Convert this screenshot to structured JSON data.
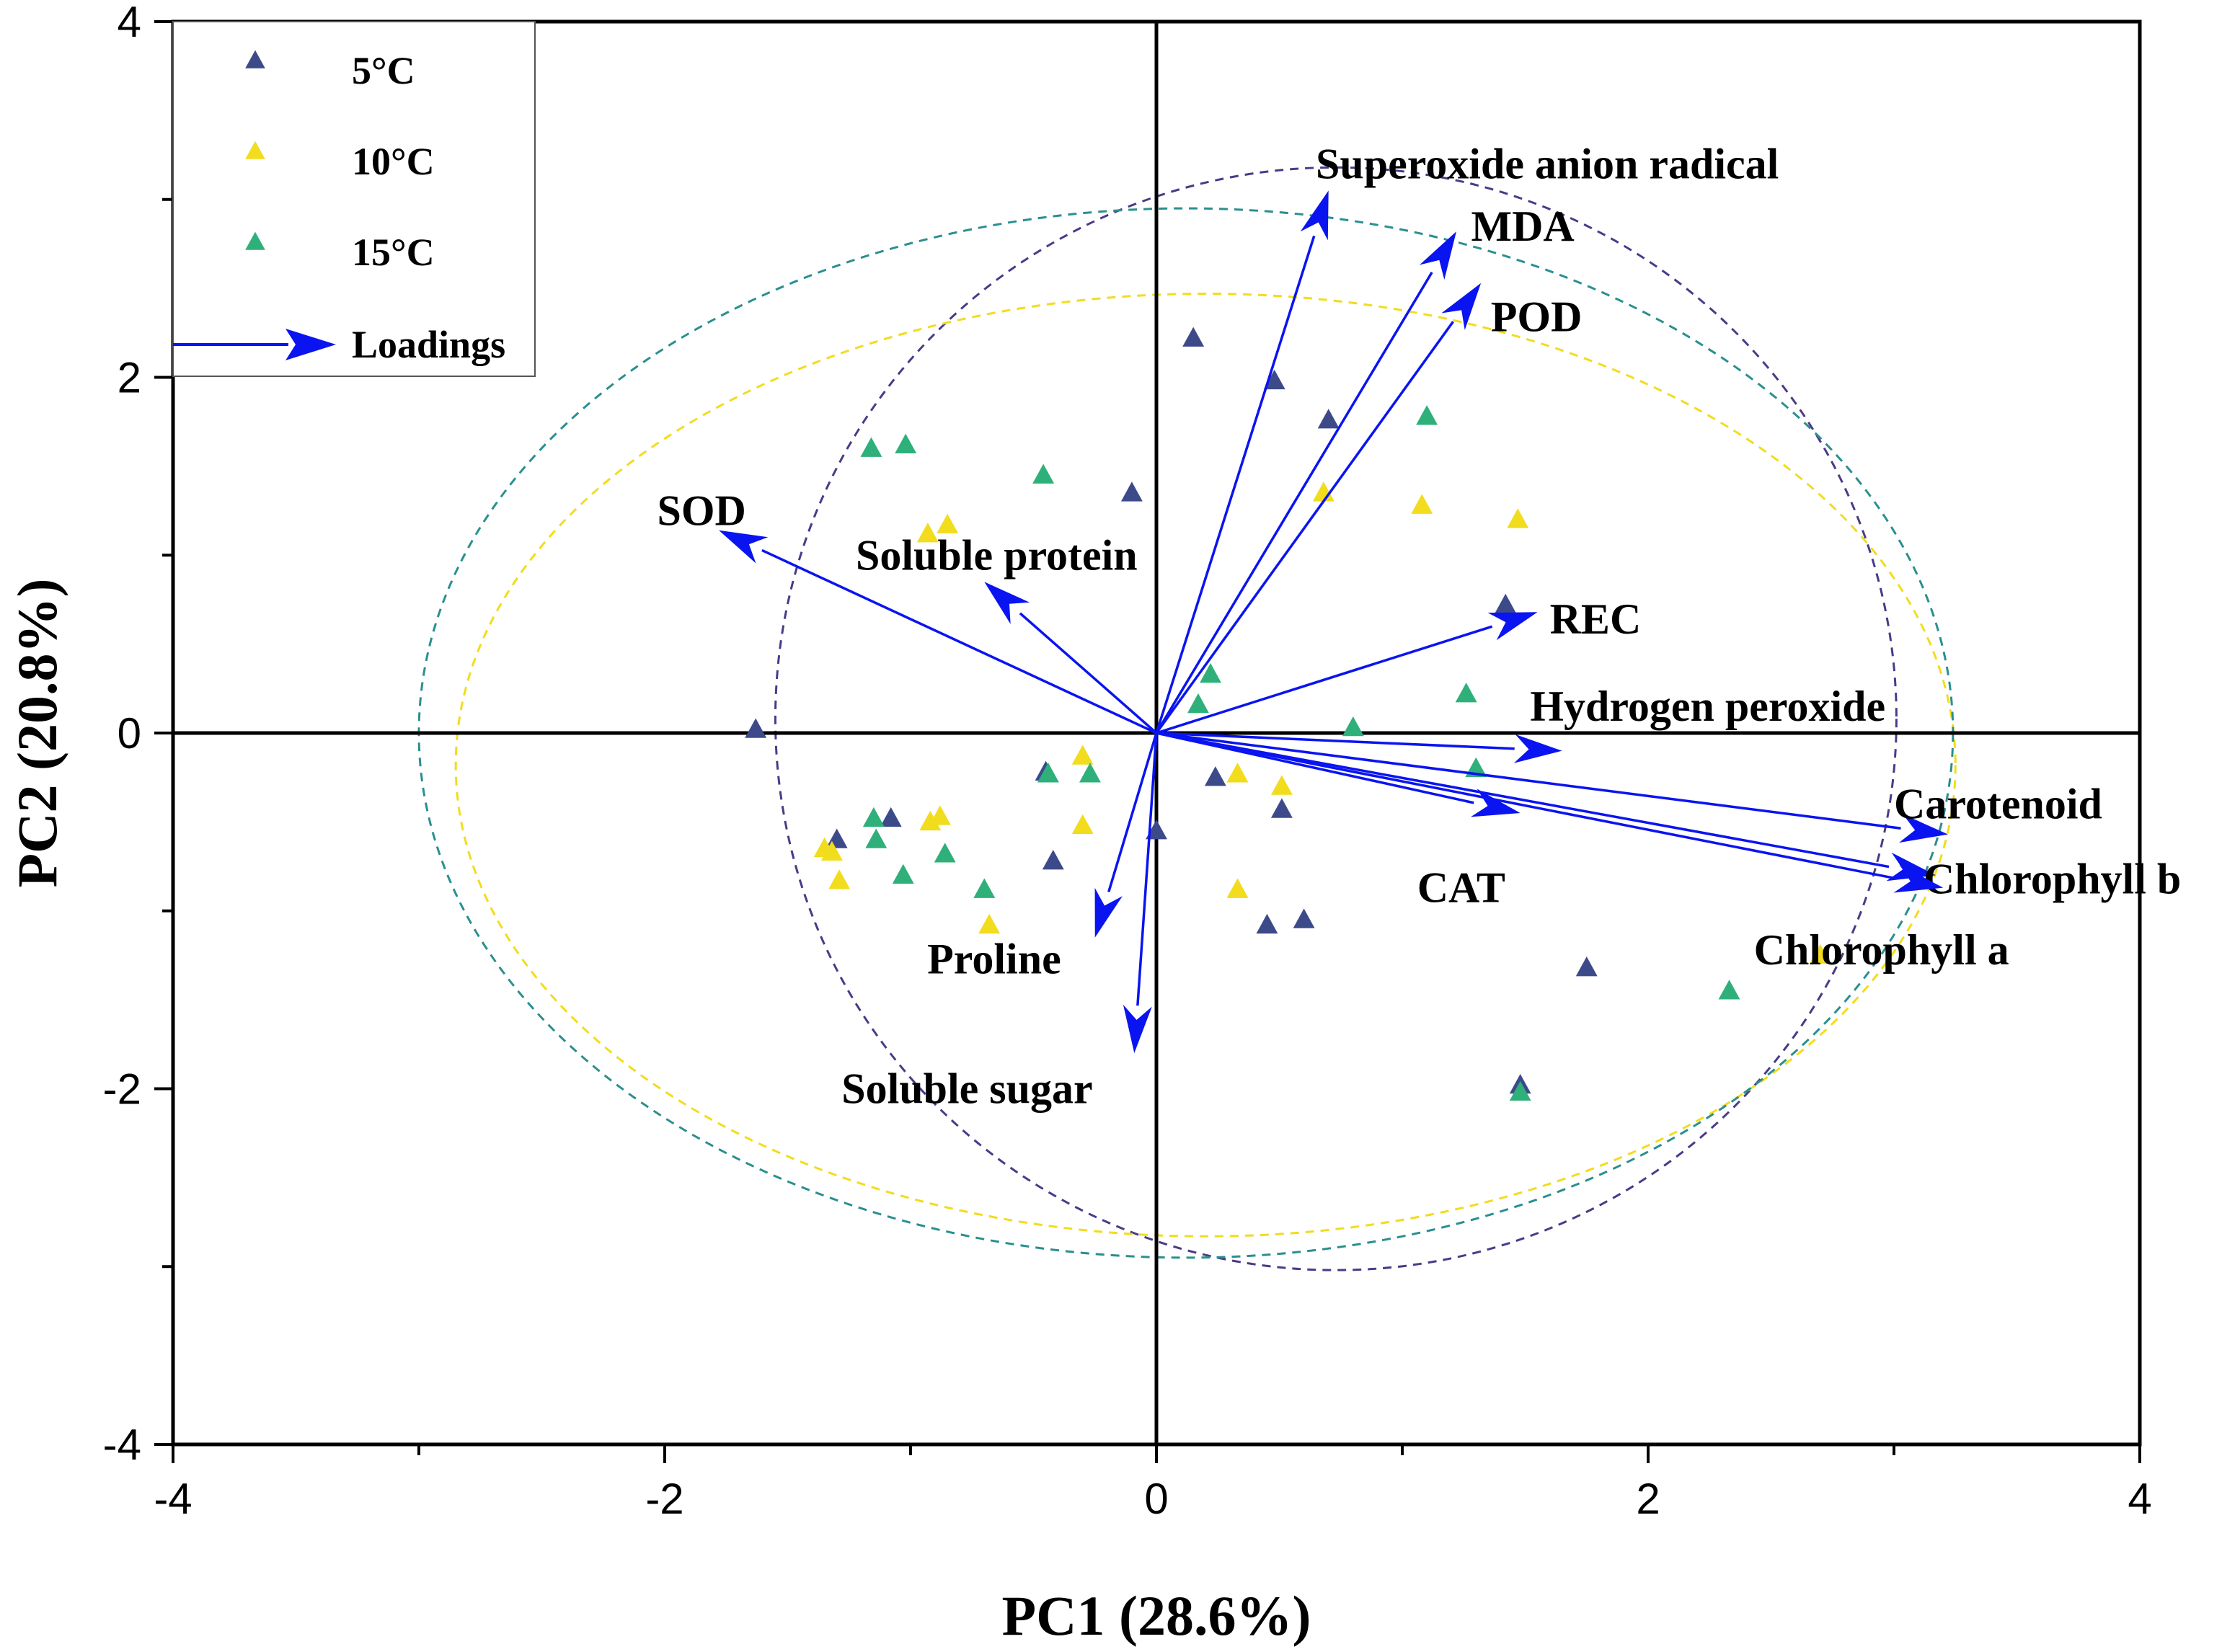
{
  "chart_data": {
    "type": "scatter",
    "subtype": "pca-biplot",
    "xlabel": "PC1 (28.6%)",
    "ylabel": "PC2 (20.8%)",
    "xlim": [
      -4,
      4
    ],
    "ylim": [
      -4,
      4
    ],
    "xticks": [
      -4,
      -2,
      0,
      2,
      4
    ],
    "yticks": [
      -4,
      -2,
      0,
      2,
      4
    ],
    "xtick_labels": [
      "-4",
      "-2",
      "0",
      "2",
      "4"
    ],
    "ytick_labels": [
      "-4",
      "-2",
      "0",
      "2",
      "4"
    ],
    "legend_position": "top-left",
    "legend": [
      {
        "label": "5°C",
        "marker": "triangle",
        "color": "#3d4a8a"
      },
      {
        "label": "10°C",
        "marker": "triangle",
        "color": "#f2dc1e"
      },
      {
        "label": "15°C",
        "marker": "triangle",
        "color": "#2fb07a"
      },
      {
        "label": "Loadings",
        "marker": "arrow",
        "color": "#0a14f0"
      }
    ],
    "series": [
      {
        "name": "5°C",
        "color": "#3d4a8a",
        "ellipse": {
          "cx": 0.73,
          "cy": 0.08,
          "rx": 2.28,
          "ry": 3.1,
          "color": "#4a3a88"
        },
        "points": [
          [
            0.15,
            2.22
          ],
          [
            0.48,
            1.98
          ],
          [
            0.7,
            1.76
          ],
          [
            -0.1,
            1.35
          ],
          [
            1.42,
            0.72
          ],
          [
            -1.63,
            0.02
          ],
          [
            -0.45,
            -0.22
          ],
          [
            0.24,
            -0.25
          ],
          [
            0.51,
            -0.43
          ],
          [
            -1.3,
            -0.6
          ],
          [
            -1.08,
            -0.48
          ],
          [
            -0.42,
            -0.72
          ],
          [
            0.0,
            -0.55
          ],
          [
            0.6,
            -1.05
          ],
          [
            1.75,
            -1.32
          ],
          [
            0.45,
            -1.08
          ],
          [
            1.48,
            -1.98
          ]
        ]
      },
      {
        "name": "10°C",
        "color": "#f2dc1e",
        "ellipse": {
          "cx": 0.2,
          "cy": -0.18,
          "rx": 3.05,
          "ry": 2.65,
          "color": "#f2dc1e"
        },
        "points": [
          [
            -0.93,
            1.12
          ],
          [
            -0.85,
            1.17
          ],
          [
            0.68,
            1.35
          ],
          [
            1.08,
            1.28
          ],
          [
            1.47,
            1.2
          ],
          [
            -0.3,
            -0.13
          ],
          [
            0.33,
            -0.23
          ],
          [
            0.51,
            -0.3
          ],
          [
            -0.88,
            -0.47
          ],
          [
            -0.3,
            -0.52
          ],
          [
            -1.32,
            -0.67
          ],
          [
            -1.29,
            -0.83
          ],
          [
            0.33,
            -0.88
          ],
          [
            -0.68,
            -1.08
          ],
          [
            2.7,
            -1.25
          ],
          [
            -1.35,
            -0.65
          ],
          [
            -0.92,
            -0.5
          ]
        ]
      },
      {
        "name": "15°C",
        "color": "#2fb07a",
        "ellipse": {
          "cx": 0.12,
          "cy": 0.0,
          "rx": 3.12,
          "ry": 2.95,
          "color": "#2a8f8f"
        },
        "points": [
          [
            -1.16,
            1.6
          ],
          [
            -1.02,
            1.62
          ],
          [
            -0.46,
            1.45
          ],
          [
            1.1,
            1.78
          ],
          [
            0.22,
            0.33
          ],
          [
            0.17,
            0.16
          ],
          [
            1.26,
            0.22
          ],
          [
            0.8,
            0.03
          ],
          [
            1.3,
            -0.2
          ],
          [
            -0.27,
            -0.23
          ],
          [
            -0.44,
            -0.23
          ],
          [
            -1.15,
            -0.48
          ],
          [
            -1.14,
            -0.6
          ],
          [
            -1.03,
            -0.8
          ],
          [
            -0.86,
            -0.68
          ],
          [
            -0.7,
            -0.88
          ],
          [
            2.33,
            -1.45
          ],
          [
            1.48,
            -2.02
          ]
        ]
      }
    ],
    "loadings": [
      {
        "name": "Superoxide anion radical",
        "x": 0.7,
        "y": 3.05
      },
      {
        "name": "MDA",
        "x": 1.22,
        "y": 2.82
      },
      {
        "name": "POD",
        "x": 1.32,
        "y": 2.53
      },
      {
        "name": "SOD",
        "x": -1.78,
        "y": 1.14
      },
      {
        "name": "Soluble protein",
        "x": -0.7,
        "y": 0.85
      },
      {
        "name": "REC",
        "x": 1.55,
        "y": 0.68
      },
      {
        "name": "Hydrogen peroxide",
        "x": 1.65,
        "y": -0.1
      },
      {
        "name": "Carotenoid",
        "x": 3.22,
        "y": -0.57
      },
      {
        "name": "Chlorophyll b",
        "x": 3.17,
        "y": -0.8
      },
      {
        "name": "Chlorophyll a",
        "x": 3.2,
        "y": -0.87
      },
      {
        "name": "CAT",
        "x": 1.48,
        "y": -0.45
      },
      {
        "name": "Proline",
        "x": -0.25,
        "y": -1.15
      },
      {
        "name": "Soluble sugar",
        "x": -0.09,
        "y": -1.8
      }
    ]
  }
}
